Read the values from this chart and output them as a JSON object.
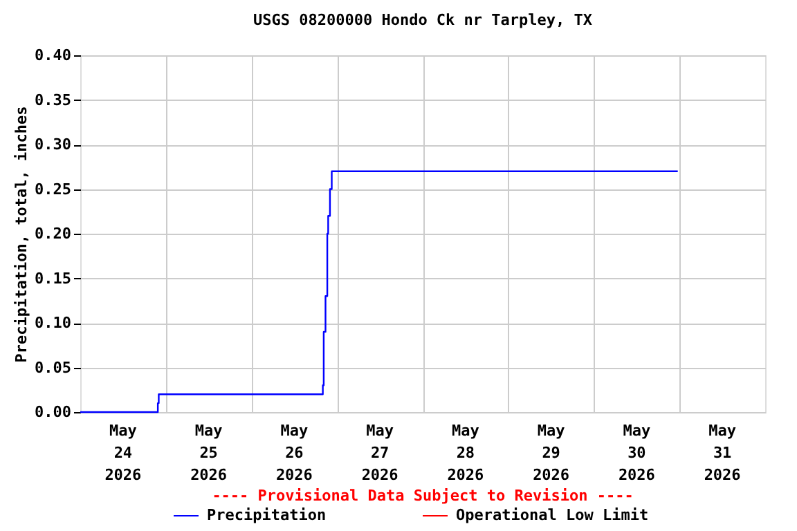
{
  "chart_data": {
    "type": "step",
    "title": "USGS 08200000 Hondo Ck nr Tarpley, TX",
    "ylabel": "Precipitation, total, inches",
    "annotations": [
      "---- Provisional Data Subject to Revision ----"
    ],
    "x": [
      "2026-05-24T00:00",
      "2026-05-24T21:45",
      "2026-05-24T22:00",
      "2026-05-26T20:00",
      "2026-05-26T20:15",
      "2026-05-26T20:45",
      "2026-05-26T21:15",
      "2026-05-26T21:30",
      "2026-05-26T22:00",
      "2026-05-26T22:30",
      "2026-05-30T23:30"
    ],
    "series": [
      {
        "name": "Precipitation",
        "color": "#0000ff",
        "values": [
          0,
          0.01,
          0.02,
          0.03,
          0.09,
          0.13,
          0.2,
          0.22,
          0.25,
          0.27,
          0.27
        ]
      },
      {
        "name": "Operational Low Limit",
        "color": "#ff0000",
        "values": [
          null,
          null,
          null,
          null,
          null,
          null,
          null,
          null,
          null,
          null,
          null
        ]
      }
    ],
    "xlim": [
      "2026-05-24T00:00",
      "2026-06-01T00:00"
    ],
    "xticks": [
      {
        "value": "2026-05-24T12:00",
        "label": "May 24 2026"
      },
      {
        "value": "2026-05-25T00:00",
        "label": null
      },
      {
        "value": "2026-05-25T12:00",
        "label": "May 25 2026"
      },
      {
        "value": "2026-05-26T00:00",
        "label": null
      },
      {
        "value": "2026-05-26T12:00",
        "label": "May 26 2026"
      },
      {
        "value": "2026-05-27T00:00",
        "label": null
      },
      {
        "value": "2026-05-27T12:00",
        "label": "May 27 2026"
      },
      {
        "value": "2026-05-28T00:00",
        "label": null
      },
      {
        "value": "2026-05-28T12:00",
        "label": "May 28 2026"
      },
      {
        "value": "2026-05-29T00:00",
        "label": null
      },
      {
        "value": "2026-05-29T12:00",
        "label": "May 29 2026"
      },
      {
        "value": "2026-05-30T00:00",
        "label": null
      },
      {
        "value": "2026-05-30T12:00",
        "label": "May 30 2026"
      },
      {
        "value": "2026-05-31T00:00",
        "label": null
      },
      {
        "value": "2026-05-31T12:00",
        "label": "May 31 2026"
      }
    ],
    "ylim": [
      0,
      0.4
    ],
    "yticks": [
      {
        "value": 0,
        "label": "0.00"
      },
      {
        "value": 0.05,
        "label": "0.05"
      },
      {
        "value": 0.1,
        "label": "0.10"
      },
      {
        "value": 0.15,
        "label": "0.15"
      },
      {
        "value": 0.2,
        "label": "0.20"
      },
      {
        "value": 0.25,
        "label": "0.25"
      },
      {
        "value": 0.3,
        "label": "0.30"
      },
      {
        "value": 0.35,
        "label": "0.35"
      },
      {
        "value": 0.4,
        "label": "0.40"
      }
    ],
    "grid": true,
    "legend": "bottom",
    "marker": "none",
    "line_style": "solid"
  }
}
